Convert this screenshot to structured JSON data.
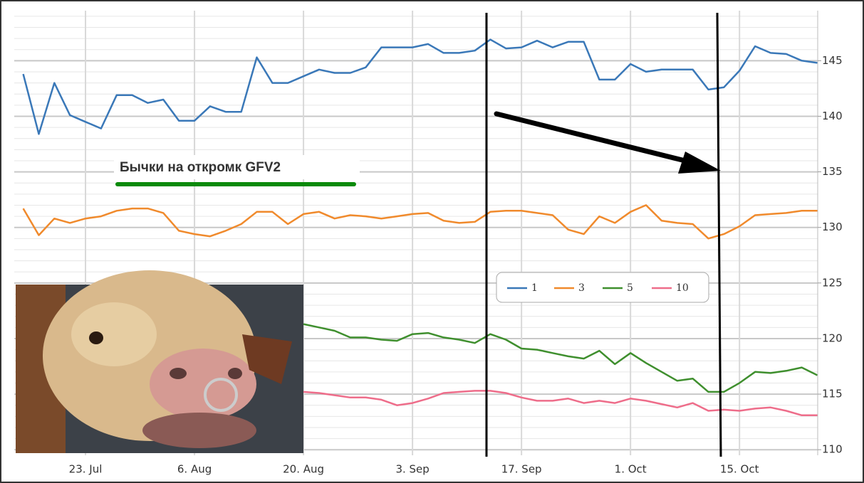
{
  "chart_data": {
    "type": "line",
    "annotation": "Бычки на откромк GFV2",
    "categories": [
      null,
      null,
      null,
      null,
      "23. Jul",
      null,
      null,
      null,
      null,
      null,
      null,
      "6. Aug",
      null,
      null,
      null,
      null,
      null,
      null,
      "20. Aug",
      null,
      null,
      null,
      null,
      null,
      null,
      "3. Sep",
      null,
      null,
      null,
      null,
      null,
      null,
      "17. Sep",
      null,
      null,
      null,
      null,
      null,
      null,
      "1. Oct",
      null,
      null,
      null,
      null,
      null,
      null,
      "15. Oct",
      null,
      null,
      null,
      null,
      null
    ],
    "series": [
      {
        "name": "1",
        "color": "#3a78b8",
        "values": [
          143.8,
          138.4,
          143.0,
          140.1,
          139.5,
          138.9,
          141.9,
          141.9,
          141.2,
          141.5,
          139.6,
          139.6,
          140.9,
          140.4,
          140.4,
          145.3,
          143.0,
          143.0,
          143.6,
          144.2,
          143.9,
          143.9,
          144.4,
          146.2,
          146.2,
          146.2,
          146.5,
          145.7,
          145.7,
          145.9,
          146.9,
          146.1,
          146.2,
          146.8,
          146.2,
          146.7,
          146.7,
          143.3,
          143.3,
          144.7,
          144.0,
          144.2,
          144.2,
          144.2,
          142.4,
          142.6,
          144.1,
          146.3,
          145.7,
          145.6,
          145.0,
          144.8
        ]
      },
      {
        "name": "3",
        "color": "#f08a2c",
        "values": [
          131.7,
          129.3,
          130.8,
          130.4,
          130.8,
          131.0,
          131.5,
          131.7,
          131.7,
          131.3,
          129.7,
          129.4,
          129.2,
          129.7,
          130.3,
          131.4,
          131.4,
          130.3,
          131.2,
          131.4,
          130.8,
          131.1,
          131.0,
          130.8,
          131.0,
          131.2,
          131.3,
          130.6,
          130.4,
          130.5,
          131.4,
          131.5,
          131.5,
          131.3,
          131.1,
          129.8,
          129.4,
          131.0,
          130.4,
          131.4,
          132.0,
          130.6,
          130.4,
          130.3,
          129.0,
          129.4,
          130.1,
          131.1,
          131.2,
          131.3,
          131.5,
          131.5
        ]
      },
      {
        "name": "5",
        "color": "#3f8f2e",
        "values": [
          null,
          null,
          null,
          null,
          null,
          null,
          null,
          null,
          null,
          null,
          null,
          null,
          null,
          null,
          null,
          null,
          null,
          null,
          121.3,
          121.0,
          120.7,
          120.1,
          120.1,
          119.9,
          119.8,
          120.4,
          120.5,
          120.1,
          119.9,
          119.6,
          120.4,
          119.9,
          119.1,
          119.0,
          118.7,
          118.4,
          118.2,
          118.9,
          117.7,
          118.7,
          117.8,
          117.0,
          116.2,
          116.4,
          115.2,
          115.2,
          116.0,
          117.0,
          116.9,
          117.1,
          117.4,
          116.7
        ]
      },
      {
        "name": "10",
        "color": "#ee6d8a",
        "values": [
          null,
          null,
          null,
          null,
          null,
          null,
          null,
          null,
          null,
          null,
          null,
          null,
          null,
          null,
          null,
          null,
          null,
          null,
          115.2,
          115.1,
          114.9,
          114.7,
          114.7,
          114.5,
          114.0,
          114.2,
          114.6,
          115.1,
          115.2,
          115.3,
          115.3,
          115.1,
          114.7,
          114.4,
          114.4,
          114.6,
          114.2,
          114.4,
          114.2,
          114.6,
          114.4,
          114.1,
          113.8,
          114.2,
          113.5,
          113.6,
          113.5,
          113.7,
          113.8,
          113.5,
          113.1,
          113.1
        ]
      }
    ],
    "ylim": [
      109.5,
      149.5
    ],
    "yticks": [
      110,
      115,
      120,
      125,
      130,
      135,
      140,
      145
    ],
    "grid": true
  }
}
